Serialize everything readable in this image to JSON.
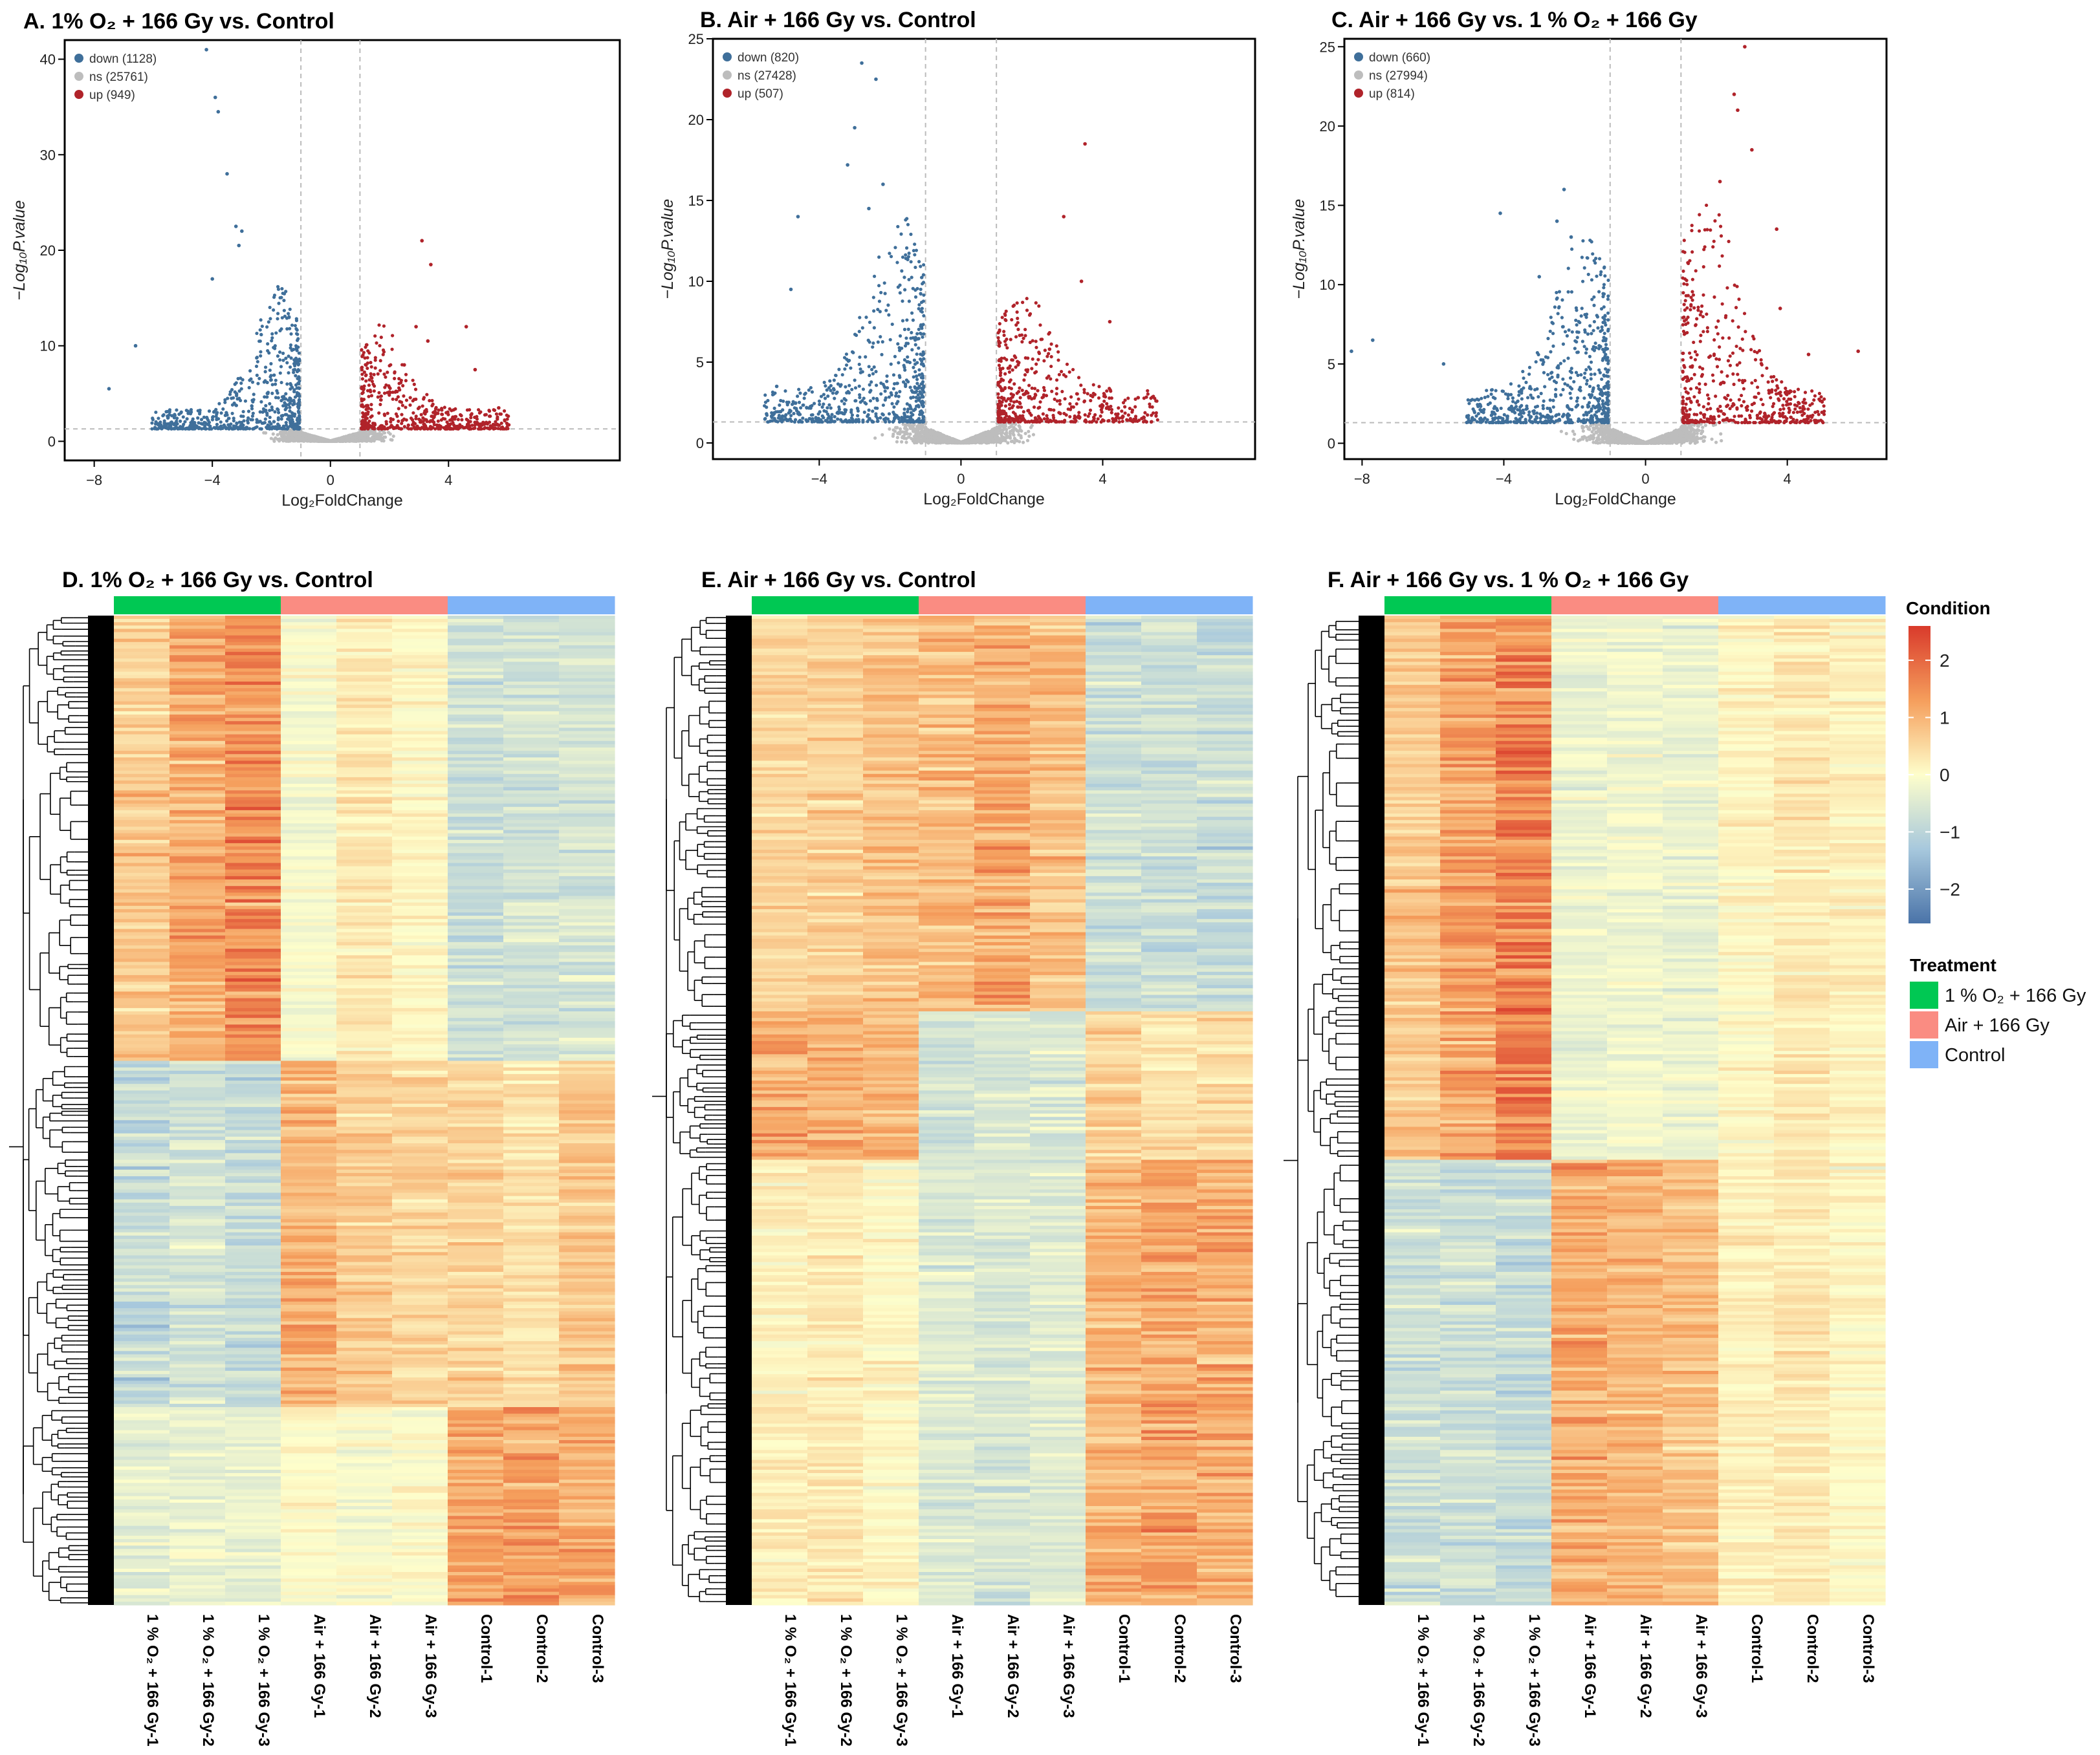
{
  "colors": {
    "down": "#3f6f9a",
    "ns": "#bdbdbd",
    "up": "#b0232a",
    "group1": "#00c853",
    "group2": "#fa8c82",
    "group3": "#7fb3f7",
    "heat_low": "#4a73a8",
    "heat_mid": "#fefecb",
    "heat_high": "#d93a2b"
  },
  "chart_data": [
    {
      "type": "scatter",
      "id": "A",
      "title": "A. 1% O₂ + 166 Gy vs. Control",
      "xlabel": "Log₂FoldChange",
      "ylabel": "−Log₁₀P.value",
      "xlim": [
        -9,
        9.8
      ],
      "ylim": [
        -2,
        42
      ],
      "xticks": [
        -8,
        -4,
        0,
        4
      ],
      "yticks": [
        0,
        10,
        20,
        30,
        40
      ],
      "fc_threshold": 1,
      "p_threshold": 1.3,
      "legend": [
        {
          "label": "down (1128)",
          "key": "down"
        },
        {
          "label": "ns (25761)",
          "key": "ns"
        },
        {
          "label": "up (949)",
          "key": "up"
        }
      ],
      "notable_points": {
        "down": [
          [
            -4.2,
            41
          ],
          [
            -3.9,
            36
          ],
          [
            -3.8,
            34.5
          ],
          [
            -3.5,
            28
          ],
          [
            -3.2,
            22.5
          ],
          [
            -3.0,
            22
          ],
          [
            -3.1,
            20.5
          ],
          [
            -4.0,
            17
          ],
          [
            -6.6,
            10
          ],
          [
            -7.5,
            5.5
          ]
        ],
        "up": [
          [
            3.1,
            21
          ],
          [
            3.4,
            18.5
          ],
          [
            2.9,
            12
          ],
          [
            3.3,
            10.5
          ],
          [
            4.6,
            12
          ],
          [
            5.7,
            3.5
          ],
          [
            4.9,
            7.5
          ],
          [
            2.5,
            8
          ]
        ]
      },
      "spread": {
        "down_peak": 13,
        "up_peak": 9,
        "xmax": 6
      }
    },
    {
      "type": "scatter",
      "id": "B",
      "title": "B. Air + 166 Gy vs. Control",
      "xlabel": "Log₂FoldChange",
      "ylabel": "−Log₁₀P.value",
      "xlim": [
        -7,
        8.3
      ],
      "ylim": [
        -1,
        25
      ],
      "xticks": [
        -4,
        0,
        4
      ],
      "yticks": [
        0,
        5,
        10,
        15,
        20,
        25
      ],
      "fc_threshold": 1,
      "p_threshold": 1.3,
      "legend": [
        {
          "label": "down (820)",
          "key": "down"
        },
        {
          "label": "ns (27428)",
          "key": "ns"
        },
        {
          "label": "up (507)",
          "key": "up"
        }
      ],
      "notable_points": {
        "down": [
          [
            -2.8,
            23.5
          ],
          [
            -2.4,
            22.5
          ],
          [
            -3.0,
            19.5
          ],
          [
            -3.2,
            17.2
          ],
          [
            -2.6,
            14.5
          ],
          [
            -4.6,
            14
          ],
          [
            -4.8,
            9.5
          ],
          [
            -2.2,
            16
          ],
          [
            -5.2,
            3.5
          ]
        ],
        "up": [
          [
            2.9,
            14
          ],
          [
            3.5,
            18.5
          ],
          [
            3.4,
            10
          ],
          [
            4.2,
            7.5
          ],
          [
            2.5,
            5.8
          ],
          [
            5.0,
            2.8
          ]
        ]
      },
      "spread": {
        "down_peak": 11,
        "up_peak": 6,
        "xmax": 5.5
      }
    },
    {
      "type": "scatter",
      "id": "C",
      "title": "C. Air + 166 Gy vs. 1 % O₂ + 166 Gy",
      "xlabel": "Log₂FoldChange",
      "ylabel": "−Log₁₀P.value",
      "xlim": [
        -8.5,
        6.8
      ],
      "ylim": [
        -1,
        25.5
      ],
      "xticks": [
        -8,
        -4,
        0,
        4
      ],
      "yticks": [
        0,
        5,
        10,
        15,
        20,
        25
      ],
      "fc_threshold": 1,
      "p_threshold": 1.3,
      "legend": [
        {
          "label": "down (660)",
          "key": "down"
        },
        {
          "label": "ns (27994)",
          "key": "ns"
        },
        {
          "label": "up (814)",
          "key": "up"
        }
      ],
      "notable_points": {
        "down": [
          [
            -2.3,
            16
          ],
          [
            -2.5,
            14
          ],
          [
            -2.1,
            13
          ],
          [
            -4.1,
            14.5
          ],
          [
            -3.0,
            10.5
          ],
          [
            -7.7,
            6.5
          ],
          [
            -5.7,
            5
          ],
          [
            -8.3,
            5.8
          ]
        ],
        "up": [
          [
            2.8,
            25
          ],
          [
            2.5,
            22
          ],
          [
            2.6,
            21
          ],
          [
            3.0,
            18.5
          ],
          [
            2.1,
            16.5
          ],
          [
            3.7,
            13.5
          ],
          [
            3.8,
            8.5
          ],
          [
            4.6,
            5.6
          ],
          [
            6.0,
            5.8
          ]
        ]
      },
      "spread": {
        "down_peak": 10,
        "up_peak": 13,
        "xmax": 5
      }
    },
    {
      "type": "heatmap",
      "id": "D",
      "title": "D. 1% O₂ + 166 Gy vs. Control",
      "columns": [
        "1 % O₂ + 166 Gy-1",
        "1 % O₂ + 166 Gy-2",
        "1 % O₂ + 166 Gy-3",
        "Air + 166 Gy-1",
        "Air + 166 Gy-2",
        "Air + 166 Gy-3",
        "Control-1",
        "Control-2",
        "Control-3"
      ],
      "column_groups": [
        "1 % O₂ + 166 Gy",
        "1 % O₂ + 166 Gy",
        "1 % O₂ + 166 Gy",
        "Air + 166 Gy",
        "Air + 166 Gy",
        "Air + 166 Gy",
        "Control",
        "Control",
        "Control"
      ],
      "row_clusters": [
        {
          "fraction": 0.45,
          "mean_z": [
            0.8,
            1.2,
            1.7,
            -0.1,
            0.3,
            0.1,
            -0.8,
            -0.7,
            -0.7
          ]
        },
        {
          "fraction": 0.35,
          "mean_z": [
            -0.9,
            -0.7,
            -0.9,
            1.1,
            0.7,
            0.6,
            0.6,
            0.4,
            0.8
          ]
        },
        {
          "fraction": 0.2,
          "mean_z": [
            -0.4,
            -0.3,
            -0.3,
            0.0,
            -0.1,
            0.0,
            1.3,
            1.4,
            1.2
          ]
        }
      ]
    },
    {
      "type": "heatmap",
      "id": "E",
      "title": "E. Air + 166 Gy vs. Control",
      "columns": [
        "1 % O₂ + 166 Gy-1",
        "1 % O₂ + 166 Gy-2",
        "1 % O₂ + 166 Gy-3",
        "Air + 166 Gy-1",
        "Air + 166 Gy-2",
        "Air + 166 Gy-3",
        "Control-1",
        "Control-2",
        "Control-3"
      ],
      "column_groups": [
        "1 % O₂ + 166 Gy",
        "1 % O₂ + 166 Gy",
        "1 % O₂ + 166 Gy",
        "Air + 166 Gy",
        "Air + 166 Gy",
        "Air + 166 Gy",
        "Control",
        "Control",
        "Control"
      ],
      "row_clusters": [
        {
          "fraction": 0.4,
          "mean_z": [
            0.6,
            0.7,
            0.9,
            1.0,
            1.2,
            0.9,
            -0.8,
            -0.8,
            -0.9
          ]
        },
        {
          "fraction": 0.15,
          "mean_z": [
            1.2,
            1.1,
            1.0,
            -0.7,
            -0.6,
            -0.6,
            0.6,
            0.4,
            0.5
          ]
        },
        {
          "fraction": 0.45,
          "mean_z": [
            0.2,
            0.3,
            0.1,
            -0.5,
            -0.6,
            -0.5,
            1.1,
            1.3,
            1.2
          ]
        }
      ]
    },
    {
      "type": "heatmap",
      "id": "F",
      "title": "F. Air + 166 Gy vs. 1 % O₂ + 166 Gy",
      "columns": [
        "1 % O₂ + 166 Gy-1",
        "1 % O₂ + 166 Gy-2",
        "1 % O₂ + 166 Gy-3",
        "Air + 166 Gy-1",
        "Air + 166 Gy-2",
        "Air + 166 Gy-3",
        "Control-1",
        "Control-2",
        "Control-3"
      ],
      "column_groups": [
        "1 % O₂ + 166 Gy",
        "1 % O₂ + 166 Gy",
        "1 % O₂ + 166 Gy",
        "Air + 166 Gy",
        "Air + 166 Gy",
        "Air + 166 Gy",
        "Control",
        "Control",
        "Control"
      ],
      "row_clusters": [
        {
          "fraction": 0.55,
          "mean_z": [
            0.8,
            1.3,
            1.8,
            -0.3,
            -0.2,
            -0.3,
            0.1,
            0.3,
            0.2
          ]
        },
        {
          "fraction": 0.45,
          "mean_z": [
            -0.8,
            -0.8,
            -0.9,
            1.2,
            1.0,
            0.9,
            0.2,
            0.3,
            0.1
          ]
        }
      ]
    }
  ],
  "heatmap_legend": {
    "condition_title": "Condition",
    "scale_ticks": [
      2,
      1,
      0,
      -1,
      -2
    ],
    "scale_range": [
      -2.6,
      2.6
    ],
    "treatment_title": "Treatment",
    "treatment_items": [
      {
        "label": "1 % O₂ + 166 Gy",
        "key": "group1"
      },
      {
        "label": "Air + 166 Gy",
        "key": "group2"
      },
      {
        "label": "Control",
        "key": "group3"
      }
    ]
  }
}
